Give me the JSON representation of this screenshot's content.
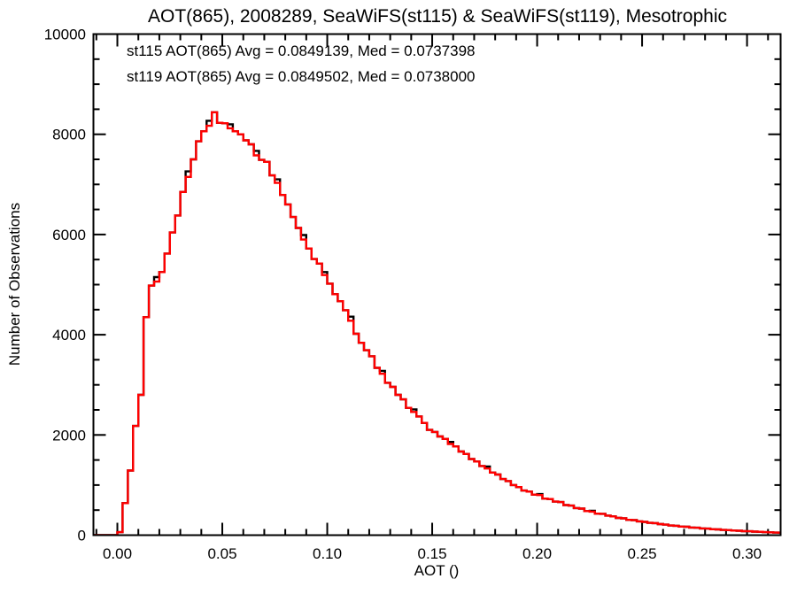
{
  "title": "AOT(865), 2008289, SeaWiFS(st115) & SeaWiFS(st119), Mesotrophic",
  "legend": [
    {
      "name": "st115",
      "label": "st115 AOT(865) Avg = 0.0849139, Med = 0.0737398",
      "color": "#000000"
    },
    {
      "name": "st119",
      "label": "st119 AOT(865) Avg = 0.0849502, Med = 0.0738000",
      "color": "#ff0000"
    }
  ],
  "chart_data": {
    "type": "histogram-step",
    "title": "AOT(865), 2008289, SeaWiFS(st115) & SeaWiFS(st119), Mesotrophic",
    "xlabel": "AOT ()",
    "ylabel": "Number of Observations",
    "xlim": [
      -0.0114,
      0.316
    ],
    "ylim": [
      0,
      10000
    ],
    "grid": false,
    "legend_position": "top-left-inside",
    "x_major_ticks": [
      {
        "value": 0.0,
        "label": "0.00"
      },
      {
        "value": 0.05,
        "label": "0.05"
      },
      {
        "value": 0.1,
        "label": "0.10"
      },
      {
        "value": 0.15,
        "label": "0.15"
      },
      {
        "value": 0.2,
        "label": "0.20"
      },
      {
        "value": 0.25,
        "label": "0.25"
      },
      {
        "value": 0.3,
        "label": "0.30"
      }
    ],
    "x_minor_step": 0.01,
    "y_major_ticks": [
      {
        "value": 0,
        "label": "0"
      },
      {
        "value": 2000,
        "label": "2000"
      },
      {
        "value": 4000,
        "label": "4000"
      },
      {
        "value": 6000,
        "label": "6000"
      },
      {
        "value": 8000,
        "label": "8000"
      },
      {
        "value": 10000,
        "label": "10000"
      }
    ],
    "y_minor_step": 500,
    "bin_start": 0.0,
    "bin_width": 0.0025,
    "series": [
      {
        "name": "st115",
        "color": "#000000",
        "counts": [
          60,
          640,
          1290,
          2180,
          2800,
          4350,
          4980,
          5150,
          5250,
          5620,
          6040,
          6380,
          6850,
          7260,
          7500,
          7860,
          8060,
          8270,
          8440,
          8230,
          8220,
          8200,
          8060,
          8000,
          7880,
          7800,
          7670,
          7490,
          7450,
          7180,
          7100,
          6790,
          6600,
          6350,
          6130,
          5990,
          5720,
          5510,
          5420,
          5250,
          5020,
          4810,
          4670,
          4490,
          4360,
          4020,
          3840,
          3690,
          3570,
          3340,
          3280,
          3040,
          2960,
          2800,
          2710,
          2540,
          2510,
          2370,
          2240,
          2100,
          2060,
          1970,
          1920,
          1860,
          1770,
          1670,
          1620,
          1520,
          1470,
          1380,
          1370,
          1250,
          1210,
          1120,
          1080,
          1000,
          960,
          890,
          870,
          810,
          820,
          730,
          720,
          670,
          660,
          600,
          590,
          540,
          530,
          480,
          485,
          430,
          425,
          390,
          375,
          345,
          335,
          305,
          300,
          275,
          265,
          245,
          240,
          220,
          210,
          192,
          188,
          172,
          168,
          152,
          148,
          134,
          130,
          118,
          114,
          104,
          100,
          92,
          88,
          80,
          77,
          70,
          67,
          60,
          57,
          52,
          50
        ]
      },
      {
        "name": "st119",
        "color": "#ff0000",
        "counts": [
          60,
          640,
          1290,
          2180,
          2800,
          4350,
          4980,
          5060,
          5250,
          5620,
          6040,
          6380,
          6850,
          7150,
          7500,
          7860,
          8060,
          8170,
          8440,
          8230,
          8220,
          8120,
          8060,
          8000,
          7880,
          7800,
          7580,
          7490,
          7450,
          7180,
          7030,
          6790,
          6600,
          6350,
          6130,
          5900,
          5720,
          5510,
          5420,
          5190,
          5020,
          4810,
          4670,
          4490,
          4280,
          4020,
          3840,
          3690,
          3570,
          3340,
          3220,
          3040,
          2960,
          2800,
          2710,
          2540,
          2460,
          2370,
          2240,
          2100,
          2060,
          1970,
          1920,
          1820,
          1770,
          1670,
          1620,
          1520,
          1470,
          1380,
          1330,
          1250,
          1210,
          1120,
          1080,
          1000,
          960,
          890,
          870,
          810,
          800,
          730,
          720,
          670,
          660,
          600,
          590,
          540,
          530,
          480,
          470,
          430,
          425,
          390,
          375,
          345,
          335,
          305,
          300,
          275,
          265,
          245,
          240,
          220,
          210,
          192,
          188,
          172,
          168,
          152,
          148,
          134,
          130,
          118,
          114,
          104,
          100,
          92,
          88,
          80,
          77,
          70,
          67,
          60,
          57,
          52,
          50
        ]
      }
    ]
  }
}
